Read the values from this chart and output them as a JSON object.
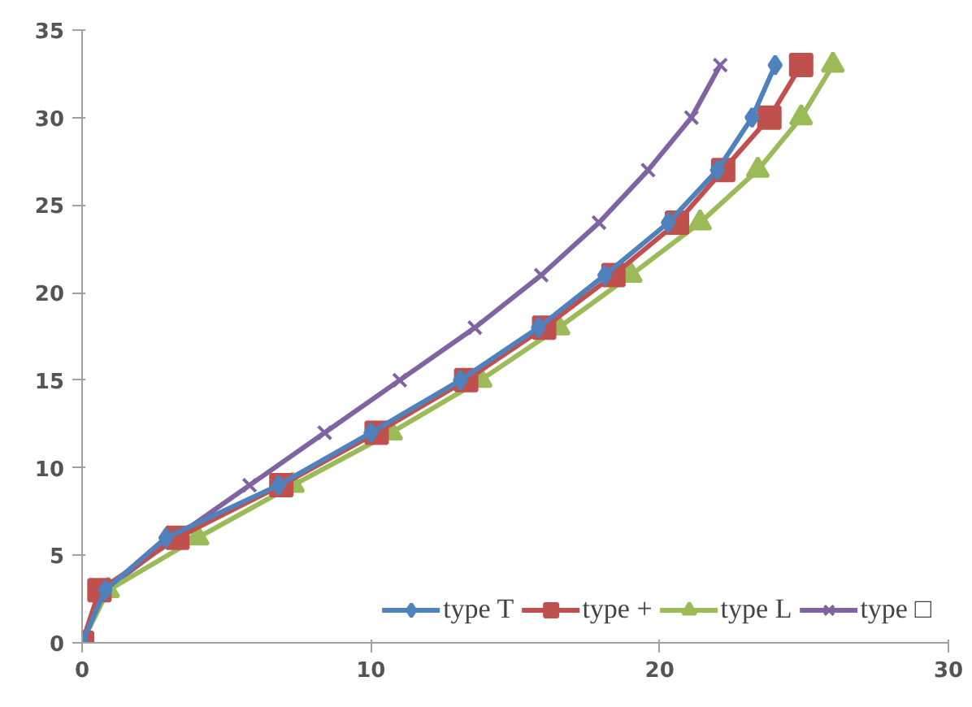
{
  "chart_data": {
    "type": "line",
    "xlim": [
      0,
      30
    ],
    "ylim": [
      0,
      35
    ],
    "xticks": [
      0,
      10,
      20,
      30
    ],
    "yticks": [
      0,
      5,
      10,
      15,
      20,
      25,
      30,
      35
    ],
    "grid": false,
    "legend": "bottom right",
    "series": [
      {
        "name": "type T",
        "color": "#4f81bd",
        "marker": "diamond",
        "x": [
          0,
          0.8,
          2.9,
          6.8,
          10.0,
          13.1,
          15.8,
          18.1,
          20.3,
          22.0,
          23.2,
          24.0
        ],
        "values": [
          0,
          3,
          6,
          9,
          12,
          15,
          18,
          21,
          24,
          27,
          30,
          33
        ]
      },
      {
        "name": "type +",
        "color": "#c0504d",
        "marker": "square",
        "x": [
          0,
          0.6,
          3.3,
          6.9,
          10.2,
          13.3,
          16.0,
          18.4,
          20.6,
          22.2,
          23.8,
          24.9
        ],
        "values": [
          0,
          3,
          6,
          9,
          12,
          15,
          18,
          21,
          24,
          27,
          30,
          33
        ]
      },
      {
        "name": "type L",
        "color": "#9bbb59",
        "marker": "triangle",
        "x": [
          0,
          0.9,
          4.0,
          7.3,
          10.7,
          13.8,
          16.5,
          19.0,
          21.4,
          23.4,
          24.9,
          26.0
        ],
        "values": [
          0,
          3,
          6,
          9,
          12,
          15,
          18,
          21,
          24,
          27,
          30,
          33
        ]
      },
      {
        "name": "type □",
        "color": "#8064a2",
        "marker": "cross",
        "x": [
          0,
          0.8,
          3.2,
          5.8,
          8.4,
          11.0,
          13.6,
          15.9,
          17.9,
          19.6,
          21.1,
          22.1
        ],
        "values": [
          0,
          3,
          6,
          9,
          12,
          15,
          18,
          21,
          24,
          27,
          30,
          33
        ]
      }
    ]
  }
}
